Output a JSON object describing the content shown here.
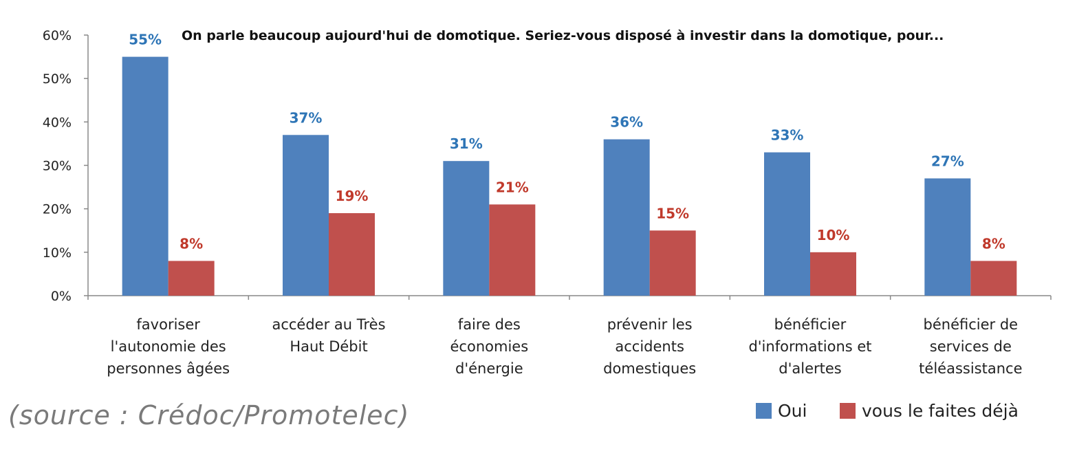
{
  "chart_data": {
    "type": "bar",
    "title": "On parle beaucoup aujourd'hui de domotique. Seriez-vous disposé à investir dans la domotique, pour...",
    "categories": [
      [
        "favoriser",
        "l'autonomie des",
        "personnes âgées"
      ],
      [
        "accéder au Très",
        "Haut Débit"
      ],
      [
        "faire des",
        "économies",
        "d'énergie"
      ],
      [
        "prévenir les",
        "accidents",
        "domestiques"
      ],
      [
        "bénéficier",
        "d'informations et",
        "d'alertes"
      ],
      [
        "bénéficier de",
        "services de",
        "téléassistance"
      ]
    ],
    "series": [
      {
        "name": "Oui",
        "color": "#4F81BD",
        "label_color": "#2E75B6",
        "values": [
          55,
          37,
          31,
          36,
          33,
          27
        ],
        "labels": [
          "55%",
          "37%",
          "31%",
          "36%",
          "33%",
          "27%"
        ]
      },
      {
        "name": "vous le faites déjà",
        "color": "#C0504D",
        "label_color": "#C0392B",
        "values": [
          8,
          19,
          21,
          15,
          10,
          8
        ],
        "labels": [
          "8%",
          "19%",
          "21%",
          "15%",
          "10%",
          "8%"
        ]
      }
    ],
    "ylim": [
      0,
      60
    ],
    "yticks": [
      "0%",
      "10%",
      "20%",
      "30%",
      "40%",
      "50%",
      "60%"
    ],
    "legend_position": "bottom-right",
    "grid": false
  },
  "source_text": "(source : Crédoc/Promotelec)"
}
